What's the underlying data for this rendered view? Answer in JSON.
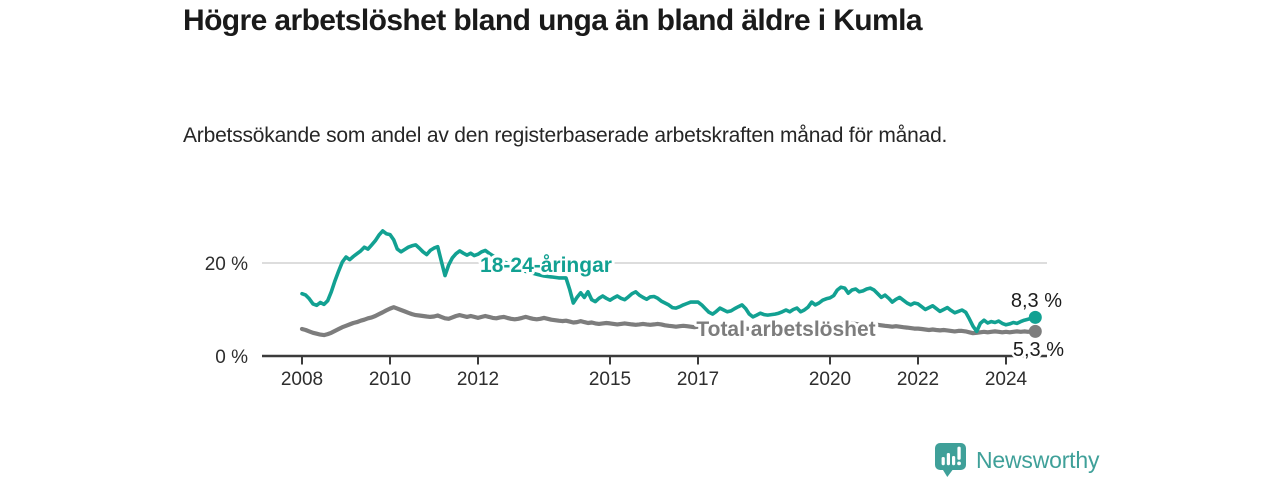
{
  "header": {
    "title": "Högre arbetslöshet bland unga än bland äldre i Kumla",
    "subtitle": "Arbetssökande som andel av den registerbaserade arbetskraften månad för månad."
  },
  "footer": {
    "brand": "Newsworthy",
    "logo_icon": "bar-chart-speech-bubble-icon"
  },
  "colors": {
    "young_line": "#12a192",
    "total_line": "#7d7d7d",
    "grid": "#d2d2d2",
    "axis": "#3b3b3b",
    "text": "#1a1a1a",
    "logo_teal": "#3fa099"
  },
  "chart_data": {
    "type": "line",
    "unit": "%",
    "frequency": "monthly",
    "start": "2008-01",
    "x_axis": {
      "range": [
        2008,
        2024.75
      ],
      "ticks": [
        {
          "year": 2008,
          "label": "2008"
        },
        {
          "year": 2010,
          "label": "2010"
        },
        {
          "year": 2012,
          "label": "2012"
        },
        {
          "year": 2015,
          "label": "2015"
        },
        {
          "year": 2017,
          "label": "2017"
        },
        {
          "year": 2020,
          "label": "2020"
        },
        {
          "year": 2022,
          "label": "2022"
        },
        {
          "year": 2024,
          "label": "2024"
        }
      ]
    },
    "y_axis": {
      "range": [
        0,
        28
      ],
      "gridlines": [
        20
      ],
      "ticks": [
        {
          "value": 0,
          "label": "0 %"
        },
        {
          "value": 20,
          "label": "20 %"
        }
      ]
    },
    "series": [
      {
        "name": "18-24-åringar",
        "color": "#12a192",
        "end_value": 8.3,
        "end_label": "8,3 %",
        "values": [
          13.4,
          13.1,
          12.3,
          11.2,
          10.9,
          11.5,
          11.1,
          11.9,
          13.8,
          16.2,
          18.3,
          20.2,
          21.3,
          20.7,
          21.4,
          22.0,
          22.6,
          23.4,
          23.0,
          23.9,
          24.8,
          26.0,
          26.9,
          26.3,
          26.1,
          25.0,
          23.0,
          22.4,
          22.9,
          23.4,
          23.7,
          23.9,
          23.2,
          22.4,
          21.8,
          22.7,
          23.2,
          23.5,
          20.4,
          17.3,
          19.6,
          21.1,
          22.0,
          22.6,
          22.1,
          21.7,
          22.1,
          21.6,
          21.9,
          22.4,
          22.7,
          22.1,
          21.6,
          21.1,
          20.7,
          20.3,
          19.9,
          19.5,
          19.1,
          18.8,
          18.5,
          18.2,
          18.0,
          17.8,
          17.6,
          17.4,
          17.2,
          17.1,
          17.0,
          16.9,
          16.8,
          16.8,
          16.8,
          14.3,
          11.4,
          12.6,
          13.6,
          12.6,
          13.8,
          12.1,
          11.7,
          12.4,
          12.9,
          12.4,
          12.0,
          12.5,
          12.9,
          12.4,
          12.1,
          12.7,
          13.4,
          13.8,
          13.1,
          12.6,
          12.2,
          12.7,
          12.8,
          12.4,
          11.8,
          11.4,
          11.0,
          10.4,
          10.3,
          10.6,
          11.0,
          11.3,
          11.6,
          11.6,
          11.6,
          11.0,
          10.2,
          9.4,
          9.0,
          9.6,
          10.3,
          9.9,
          9.5,
          9.7,
          10.2,
          10.6,
          11.0,
          10.2,
          9.0,
          8.4,
          8.8,
          9.2,
          8.9,
          8.8,
          8.9,
          9.0,
          9.2,
          9.5,
          9.9,
          9.5,
          10.0,
          10.3,
          9.5,
          9.9,
          10.5,
          11.6,
          11.0,
          11.4,
          12.0,
          12.3,
          12.5,
          13.0,
          14.2,
          14.8,
          14.6,
          13.5,
          14.2,
          14.4,
          13.8,
          14.0,
          14.4,
          14.6,
          14.2,
          13.4,
          12.6,
          13.1,
          12.4,
          11.6,
          12.2,
          12.6,
          12.0,
          11.4,
          11.0,
          11.4,
          11.2,
          10.6,
          10.0,
          10.4,
          10.8,
          10.2,
          9.6,
          10.0,
          10.4,
          9.8,
          9.3,
          9.6,
          9.9,
          9.4,
          8.0,
          6.4,
          5.3,
          7.0,
          7.7,
          7.1,
          7.4,
          7.2,
          7.5,
          7.0,
          6.7,
          6.9,
          7.2,
          7.0,
          7.4,
          7.7,
          7.9,
          8.1,
          8.3
        ]
      },
      {
        "name": "Total arbetslöshet",
        "color": "#7d7d7d",
        "end_value": 5.3,
        "end_label": "5,3 %",
        "values": [
          5.8,
          5.6,
          5.3,
          5.0,
          4.8,
          4.6,
          4.5,
          4.7,
          5.0,
          5.4,
          5.8,
          6.2,
          6.5,
          6.8,
          7.1,
          7.3,
          7.6,
          7.8,
          8.1,
          8.3,
          8.6,
          9.0,
          9.4,
          9.8,
          10.2,
          10.5,
          10.2,
          9.9,
          9.6,
          9.3,
          9.0,
          8.8,
          8.7,
          8.6,
          8.5,
          8.4,
          8.5,
          8.7,
          8.4,
          8.1,
          8.0,
          8.3,
          8.6,
          8.8,
          8.6,
          8.4,
          8.6,
          8.4,
          8.2,
          8.4,
          8.6,
          8.4,
          8.2,
          8.1,
          8.3,
          8.4,
          8.2,
          8.0,
          7.9,
          8.0,
          8.2,
          8.4,
          8.2,
          8.0,
          7.9,
          8.0,
          8.2,
          8.0,
          7.8,
          7.7,
          7.6,
          7.5,
          7.6,
          7.4,
          7.2,
          7.3,
          7.5,
          7.3,
          7.1,
          7.2,
          7.0,
          6.9,
          7.0,
          7.1,
          7.0,
          6.9,
          6.8,
          6.9,
          7.0,
          6.9,
          6.8,
          6.7,
          6.8,
          6.9,
          6.8,
          6.7,
          6.8,
          6.9,
          6.8,
          6.6,
          6.5,
          6.4,
          6.3,
          6.4,
          6.5,
          6.4,
          6.3,
          6.2,
          6.3,
          6.4,
          6.3,
          6.1,
          6.0,
          6.1,
          6.2,
          6.1,
          6.0,
          5.9,
          6.0,
          6.1,
          6.0,
          5.9,
          5.8,
          5.7,
          5.8,
          5.9,
          5.8,
          5.7,
          5.6,
          5.7,
          5.8,
          5.7,
          5.8,
          5.7,
          5.6,
          5.7,
          5.8,
          5.7,
          5.6,
          5.7,
          5.8,
          5.9,
          6.0,
          6.1,
          6.2,
          6.3,
          6.5,
          6.8,
          7.0,
          7.1,
          7.0,
          6.9,
          6.8,
          6.7,
          6.6,
          6.7,
          6.8,
          6.7,
          6.6,
          6.5,
          6.4,
          6.3,
          6.4,
          6.3,
          6.2,
          6.1,
          6.0,
          5.9,
          5.9,
          5.8,
          5.7,
          5.6,
          5.7,
          5.6,
          5.5,
          5.6,
          5.5,
          5.4,
          5.3,
          5.4,
          5.4,
          5.3,
          5.1,
          4.9,
          5.0,
          5.1,
          5.2,
          5.1,
          5.2,
          5.3,
          5.2,
          5.1,
          5.2,
          5.1,
          5.2,
          5.3,
          5.2,
          5.3,
          5.2,
          5.3,
          5.3
        ]
      }
    ]
  }
}
